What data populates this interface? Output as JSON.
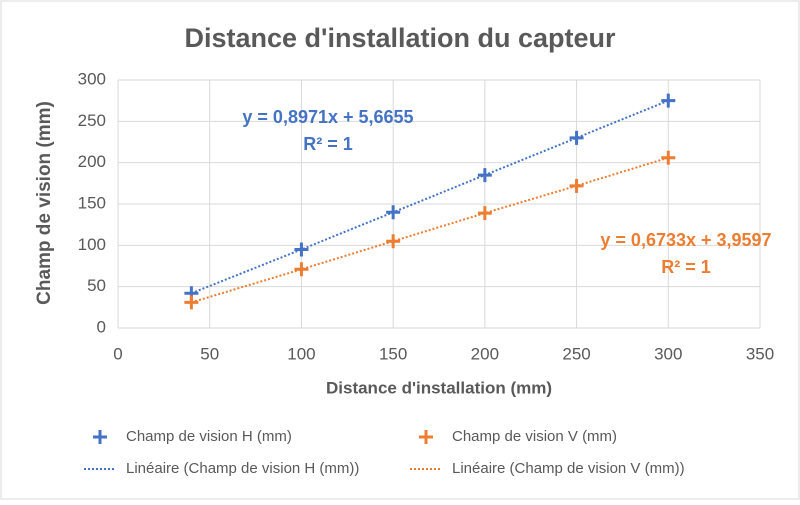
{
  "chart_data": {
    "type": "scatter",
    "title": "Distance d'installation du capteur",
    "xlabel": "Distance d'installation (mm)",
    "ylabel": "Champ de vision (mm)",
    "xlim": [
      0,
      350
    ],
    "xticks": [
      0,
      50,
      100,
      150,
      200,
      250,
      300,
      350
    ],
    "ylim": [
      0,
      300
    ],
    "yticks": [
      0,
      50,
      100,
      150,
      200,
      250,
      300
    ],
    "grid": true,
    "x": [
      40,
      100,
      150,
      200,
      250,
      300
    ],
    "series": [
      {
        "name": "Champ de vision H (mm)",
        "color": "#4472c4",
        "values": [
          42,
          95,
          140,
          185,
          230,
          275
        ],
        "trendline": {
          "name": "Linéaire (Champ de vision H (mm))",
          "equation": "y = 0,8971x + 5,6655",
          "r2": "R² = 1"
        }
      },
      {
        "name": "Champ de vision V (mm)",
        "color": "#ed7d31",
        "values": [
          31,
          71,
          105,
          139,
          172,
          206
        ],
        "trendline": {
          "name": "Linéaire (Champ de vision V (mm))",
          "equation": "y = 0,6733x + 3,9597",
          "r2": "R² = 1"
        }
      }
    ]
  }
}
